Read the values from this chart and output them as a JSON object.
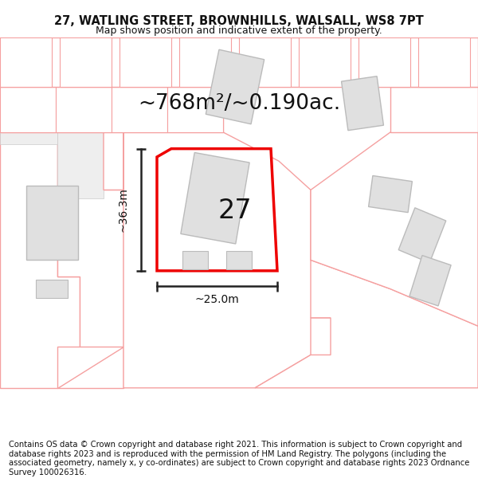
{
  "title_line1": "27, WATLING STREET, BROWNHILLS, WALSALL, WS8 7PT",
  "title_line2": "Map shows position and indicative extent of the property.",
  "area_text": "~768m²/~0.190ac.",
  "label_27": "27",
  "dim_height": "~36.3m",
  "dim_width": "~25.0m",
  "footer": "Contains OS data © Crown copyright and database right 2021. This information is subject to Crown copyright and database rights 2023 and is reproduced with the permission of HM Land Registry. The polygons (including the associated geometry, namely x, y co-ordinates) are subject to Crown copyright and database rights 2023 Ordnance Survey 100026316.",
  "bg_color": "#ffffff",
  "map_bg": "#ffffff",
  "plot_color": "#ffffff",
  "plot_edge_color": "#ee0000",
  "building_fill": "#e0e0e0",
  "building_edge": "#bbbbbb",
  "parcel_fill": "#ffffff",
  "parcel_edge_color": "#f5a0a0",
  "dim_line_color": "#222222",
  "title_fontsize": 10.5,
  "subtitle_fontsize": 9,
  "area_fontsize": 19,
  "label_fontsize": 24,
  "dim_fontsize": 10,
  "footer_fontsize": 7.2
}
